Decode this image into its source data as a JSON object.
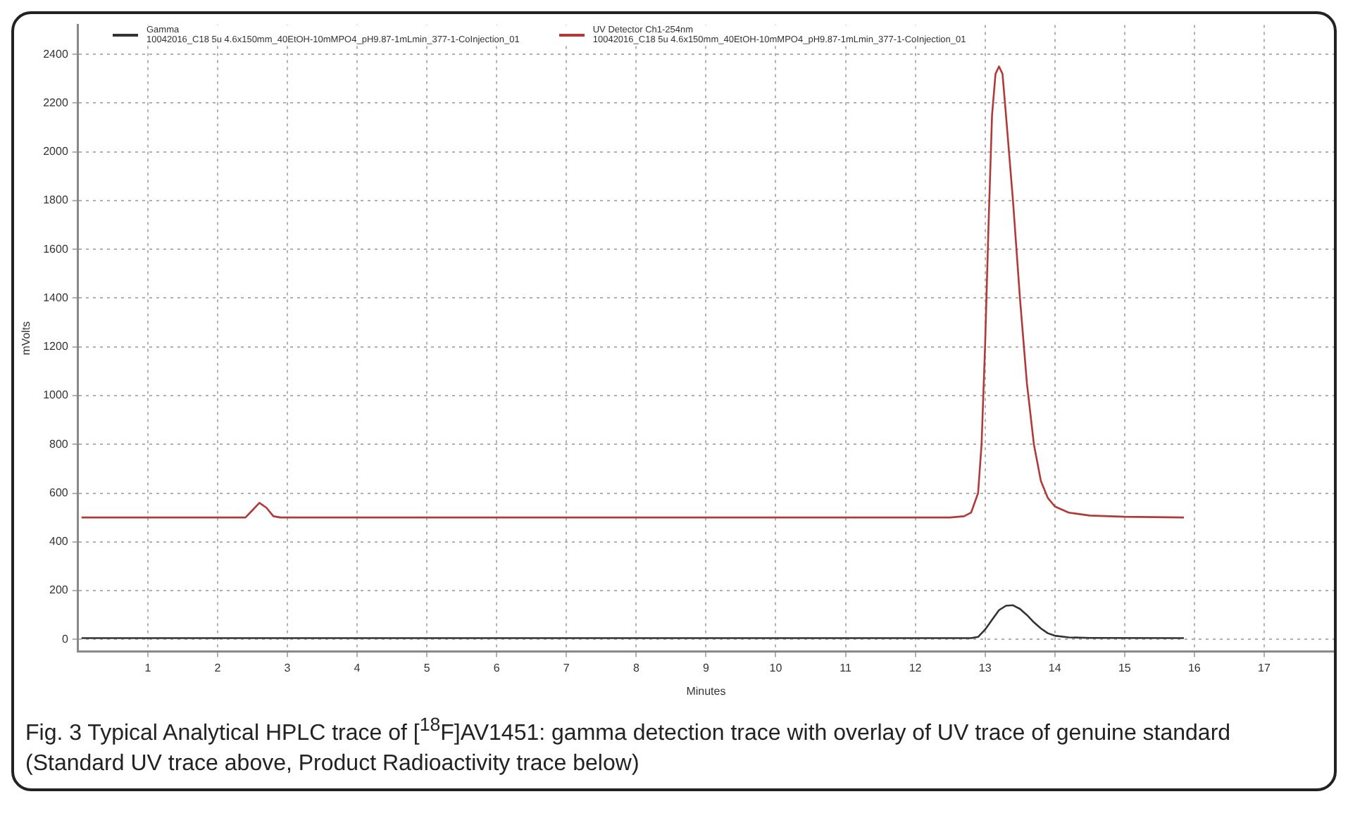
{
  "chart_data": {
    "type": "line",
    "xlabel": "Minutes",
    "ylabel": "mVolts",
    "annotations": [
      "Fig. 3 Typical Analytical HPLC trace of [$^{18}$F]AV1451: gamma detection trace with overlay of UV trace of genuine standard (Standard UV trace above, Product Radioactivity trace below)"
    ],
    "xlim": [
      0,
      18
    ],
    "xticks": [
      1,
      2,
      3,
      4,
      5,
      6,
      7,
      8,
      9,
      10,
      11,
      12,
      13,
      14,
      15,
      16,
      17
    ],
    "ylim": [
      -50,
      2520
    ],
    "yticks": [
      0,
      200,
      400,
      600,
      800,
      1000,
      1200,
      1400,
      1600,
      1800,
      2000,
      2200,
      2400
    ],
    "grid": true,
    "legend": "top left",
    "marker": "none",
    "line_style": "solid",
    "series": [
      {
        "name": "Gamma\n10042016_C18 5u 4.6x150mm_40EtOH-10mMPO4_pH9.87-1mLmin_377-1-CoInjection_01",
        "color": "#333333",
        "x": [
          0.05,
          12.8,
          12.9,
          13.0,
          13.1,
          13.2,
          13.3,
          13.4,
          13.5,
          13.6,
          13.7,
          13.8,
          13.9,
          14.0,
          14.2,
          14.5,
          15.85
        ],
        "values": [
          5,
          5,
          10,
          40,
          80,
          120,
          138,
          140,
          125,
          100,
          70,
          45,
          25,
          15,
          8,
          6,
          5
        ]
      },
      {
        "name": "UV Detector Ch1-254nm\n10042016_C18 5u 4.6x150mm_40EtOH-10mMPO4_pH9.87-1mLmin_377-1-CoInjection_01",
        "color": "#b03a3a",
        "x": [
          0.05,
          2.4,
          2.5,
          2.6,
          2.7,
          2.8,
          2.9,
          12.5,
          12.7,
          12.8,
          12.9,
          12.95,
          13.0,
          13.05,
          13.1,
          13.15,
          13.2,
          13.25,
          13.3,
          13.4,
          13.5,
          13.6,
          13.7,
          13.8,
          13.9,
          14.0,
          14.2,
          14.5,
          15.0,
          15.85
        ],
        "values": [
          500,
          500,
          530,
          560,
          540,
          505,
          500,
          500,
          505,
          520,
          600,
          800,
          1200,
          1700,
          2150,
          2320,
          2350,
          2320,
          2150,
          1800,
          1400,
          1050,
          800,
          650,
          580,
          545,
          520,
          508,
          503,
          500
        ]
      }
    ]
  }
}
